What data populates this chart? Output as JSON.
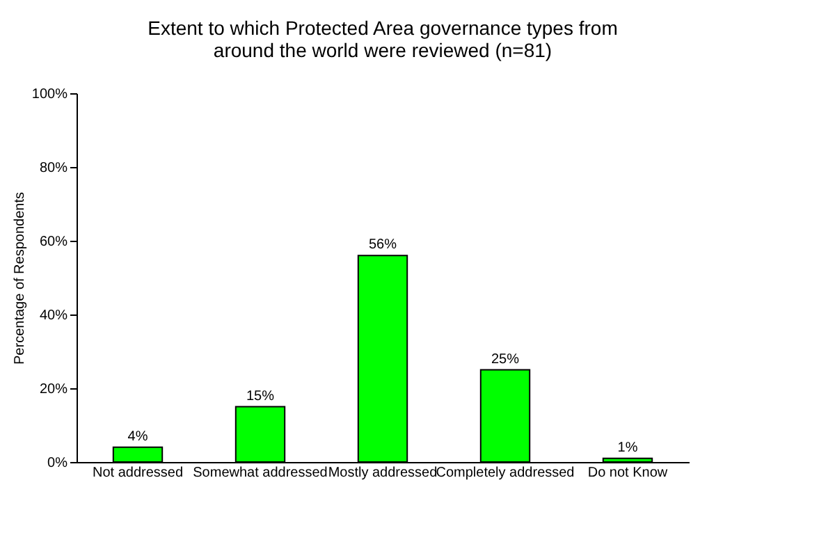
{
  "chart_data": {
    "type": "bar",
    "title": [
      "Extent to which Protected Area governance types from",
      "around the world were reviewed (n=81)"
    ],
    "ylabel": "Percentage of Respondents",
    "categories": [
      "Not addressed",
      "Somewhat addressed",
      "Mostly addressed",
      "Completely addressed",
      "Do not Know"
    ],
    "values": [
      4,
      15,
      56,
      25,
      1
    ],
    "value_labels": [
      "4%",
      "15%",
      "56%",
      "25%",
      "1%"
    ],
    "color": "#00ff00",
    "ylim": [
      0,
      100
    ],
    "yticks": [
      {
        "value": 0,
        "label": "0%"
      },
      {
        "value": 20,
        "label": "20%"
      },
      {
        "value": 40,
        "label": "40%"
      },
      {
        "value": 60,
        "label": "60%"
      },
      {
        "value": 80,
        "label": "80%"
      },
      {
        "value": 100,
        "label": "100%"
      }
    ],
    "grid": false
  }
}
